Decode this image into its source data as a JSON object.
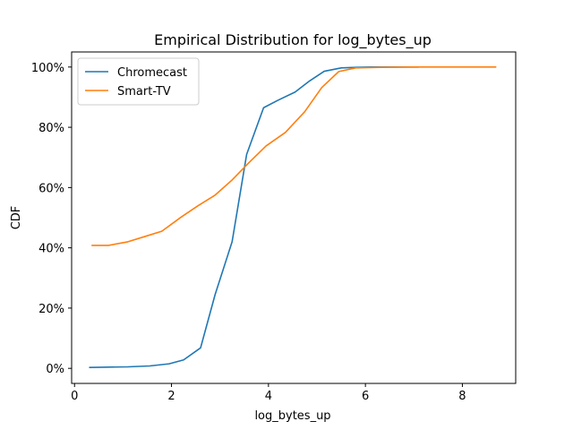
{
  "chart_data": {
    "type": "line",
    "title": "Empirical Distribution for log_bytes_up",
    "xlabel": "log_bytes_up",
    "ylabel": "CDF",
    "xlim": [
      -0.06,
      9.1
    ],
    "ylim": [
      -0.05,
      1.05
    ],
    "x_ticks": [
      0,
      2,
      4,
      6,
      8
    ],
    "x_tick_labels": [
      "0",
      "2",
      "4",
      "6",
      "8"
    ],
    "y_ticks": [
      0,
      0.2,
      0.4,
      0.6,
      0.8,
      1.0
    ],
    "y_tick_labels": [
      "0%",
      "20%",
      "40%",
      "60%",
      "80%",
      "100%"
    ],
    "grid": false,
    "legend_position": "top-left",
    "series": [
      {
        "name": "Chromecast",
        "color": "#1f77b4",
        "x": [
          0.3,
          0.7,
          1.1,
          1.55,
          1.95,
          2.25,
          2.6,
          2.9,
          3.25,
          3.55,
          3.9,
          4.2,
          4.55,
          4.85,
          5.15,
          5.5,
          5.8,
          6.1,
          6.5,
          7.1
        ],
        "y": [
          0.003,
          0.004,
          0.005,
          0.008,
          0.015,
          0.028,
          0.068,
          0.245,
          0.42,
          0.71,
          0.865,
          0.89,
          0.917,
          0.954,
          0.986,
          0.997,
          0.999,
          1.0,
          1.0,
          1.0
        ]
      },
      {
        "name": "Smart-TV",
        "color": "#ff7f0e",
        "x": [
          0.35,
          0.7,
          1.1,
          1.5,
          1.8,
          2.2,
          2.55,
          2.9,
          3.25,
          3.6,
          3.95,
          4.35,
          4.75,
          5.1,
          5.45,
          5.8,
          6.3,
          7.0,
          8.0,
          8.7
        ],
        "y": [
          0.408,
          0.408,
          0.42,
          0.44,
          0.455,
          0.502,
          0.54,
          0.575,
          0.625,
          0.683,
          0.738,
          0.783,
          0.852,
          0.932,
          0.985,
          0.997,
          0.999,
          1.0,
          1.0,
          1.0
        ]
      }
    ]
  }
}
